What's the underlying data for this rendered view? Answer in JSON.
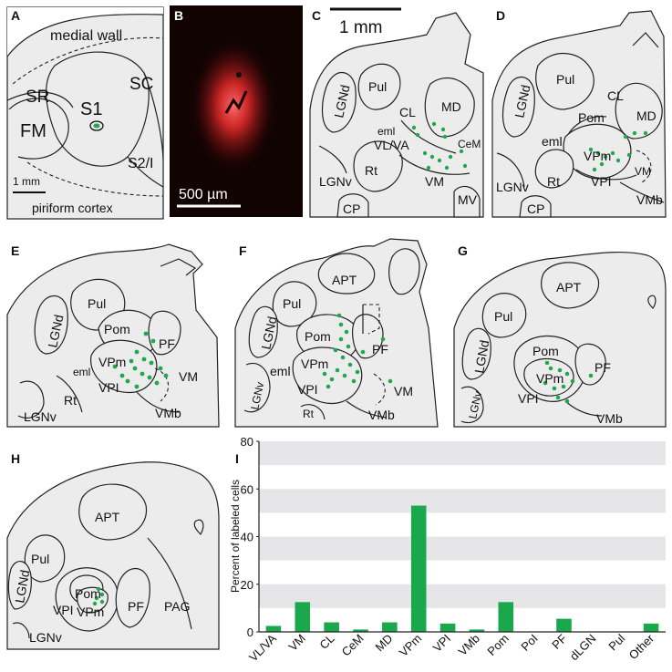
{
  "panels": {
    "A": {
      "letter": "A",
      "labels": {
        "medial": "medial wall",
        "sr": "SR",
        "s1": "S1",
        "sc": "SC",
        "fm": "FM",
        "s2": "S2/I",
        "scale": "1 mm",
        "piri": "piriform cortex"
      }
    },
    "B": {
      "letter": "B",
      "scale": "500 µm"
    },
    "C": {
      "letter": "C",
      "scale": "1 mm",
      "labels": {
        "pul": "Pul",
        "lgnd": "LGNd",
        "md": "MD",
        "cl": "CL",
        "eml": "eml",
        "vlva": "VL/VA",
        "cem": "CeM",
        "rt": "Rt",
        "lgnv": "LGNv",
        "vm": "VM",
        "mv": "MV",
        "cp": "CP"
      }
    },
    "D": {
      "letter": "D",
      "labels": {
        "pul": "Pul",
        "lgnd": "LGNd",
        "cl": "CL",
        "md": "MD",
        "pom": "Pom",
        "eml": "eml",
        "vpm": "VPm",
        "vm": "VM",
        "lgnv": "LGNv",
        "rt": "Rt",
        "vpi": "VPI",
        "vmb": "VMb",
        "cp": "CP"
      }
    },
    "E": {
      "letter": "E",
      "labels": {
        "pul": "Pul",
        "lgnd": "LGNd",
        "pom": "Pom",
        "pf": "PF",
        "vpm": "VPm",
        "eml": "eml",
        "vm": "VM",
        "vpi": "VPI",
        "rt": "Rt",
        "lgnv": "LGNv",
        "vmb": "VMb"
      }
    },
    "F": {
      "letter": "F",
      "labels": {
        "apt": "APT",
        "pul": "Pul",
        "lgnd": "LGNd",
        "pom": "Pom",
        "pf": "PF",
        "lgnv": "LGNv",
        "eml": "eml",
        "vpm": "VPm",
        "vpi": "VPI",
        "vm": "VM",
        "rt": "Rt",
        "vmb": "VMb"
      }
    },
    "G": {
      "letter": "G",
      "labels": {
        "apt": "APT",
        "pul": "Pul",
        "lgnd": "LGNd",
        "pom": "Pom",
        "vpm": "VPm",
        "pf": "PF",
        "lgnv": "LGNv",
        "vpi": "VPI",
        "vmb": "VMb"
      }
    },
    "H": {
      "letter": "H",
      "labels": {
        "apt": "APT",
        "pul": "Pul",
        "pom": "Pom",
        "lgnd": "LGNd",
        "vpm": "VPm",
        "pf": "PF",
        "pag": "PAG",
        "vpi": "VPI",
        "lgnv": "LGNv"
      }
    },
    "I": {
      "letter": "I"
    }
  },
  "chart_data": {
    "type": "bar",
    "ylabel": "Percent of labeled cells",
    "ylim": [
      0,
      80
    ],
    "yticks": [
      0,
      20,
      40,
      60,
      80
    ],
    "categories": [
      "VL/VA",
      "VM",
      "CL",
      "CeM",
      "MD",
      "VPm",
      "VPI",
      "VMb",
      "Pom",
      "PoI",
      "PF",
      "dLGN",
      "Pul",
      "Other"
    ],
    "values": [
      2.5,
      12.5,
      4,
      1,
      4,
      53,
      3.5,
      1,
      12.5,
      0,
      5.5,
      0,
      0,
      3.5
    ],
    "bar_color": "#19a84b",
    "grid": "alternating gray bands"
  }
}
